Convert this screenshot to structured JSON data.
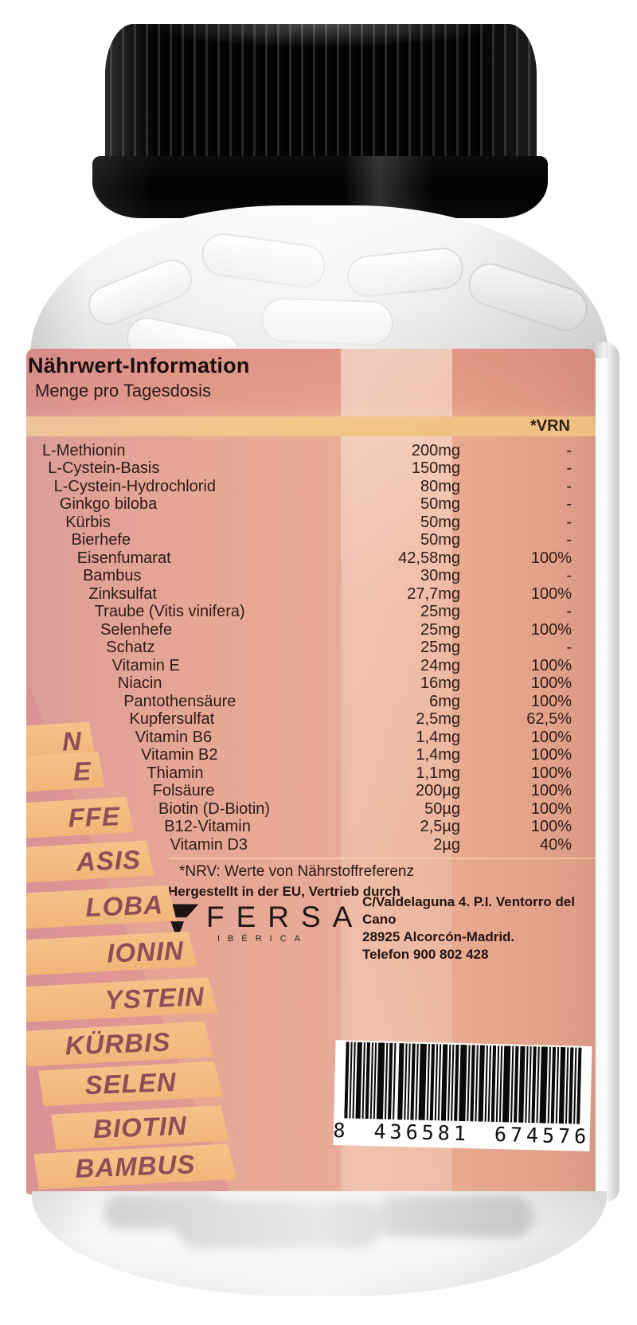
{
  "product": {
    "barcode_digits": "8 436581 674576"
  },
  "label": {
    "title": "Nährwert-Information",
    "subtitle": "Menge pro Tagesdosis",
    "vrn_header": "*VRN",
    "table": {
      "rows": [
        {
          "name": "L-Methionin",
          "amount": "200mg",
          "vrn": "-"
        },
        {
          "name": "L-Cystein-Basis",
          "amount": "150mg",
          "vrn": "-"
        },
        {
          "name": "L-Cystein-Hydrochlorid",
          "amount": "80mg",
          "vrn": "-"
        },
        {
          "name": "Ginkgo biloba",
          "amount": "50mg",
          "vrn": "-"
        },
        {
          "name": "Kürbis",
          "amount": "50mg",
          "vrn": "-"
        },
        {
          "name": "Bierhefe",
          "amount": "50mg",
          "vrn": "-"
        },
        {
          "name": "Eisenfumarat",
          "amount": "42,58mg",
          "vrn": "100%"
        },
        {
          "name": "Bambus",
          "amount": "30mg",
          "vrn": "-"
        },
        {
          "name": "Zinksulfat",
          "amount": "27,7mg",
          "vrn": "100%"
        },
        {
          "name": "Traube (Vitis vinifera)",
          "amount": "25mg",
          "vrn": "-"
        },
        {
          "name": "Selenhefe",
          "amount": "25mg",
          "vrn": "100%"
        },
        {
          "name": "Schatz",
          "amount": "25mg",
          "vrn": "-"
        },
        {
          "name": "Vitamin E",
          "amount": "24mg",
          "vrn": "100%"
        },
        {
          "name": "Niacin",
          "amount": "16mg",
          "vrn": "100%"
        },
        {
          "name": "Pantothensäure",
          "amount": "6mg",
          "vrn": "100%"
        },
        {
          "name": "Kupfersulfat",
          "amount": "2,5mg",
          "vrn": "62,5%"
        },
        {
          "name": "Vitamin B6",
          "amount": "1,4mg",
          "vrn": "100%"
        },
        {
          "name": "Vitamin B2",
          "amount": "1,4mg",
          "vrn": "100%"
        },
        {
          "name": "Thiamin",
          "amount": "1,1mg",
          "vrn": "100%"
        },
        {
          "name": "Folsäure",
          "amount": "200µg",
          "vrn": "100%"
        },
        {
          "name": "Biotin (D-Biotin)",
          "amount": "50µg",
          "vrn": "100%"
        },
        {
          "name": "B12-Vitamin",
          "amount": "2,5µg",
          "vrn": "100%"
        },
        {
          "name": "Vitamin D3",
          "amount": "2µg",
          "vrn": "40%"
        }
      ]
    },
    "nrv_note": "*NRV: Werte von Nährstoffreferenz",
    "distribution_note": "Hergestellt in der EU, Vertrieb durch",
    "brand": {
      "name": "FERSA",
      "sub": "IBÉRICA"
    },
    "address_lines": [
      "C/Valdelaguna 4. P.I. Ventorro del Cano",
      "28925 Alcorcón-Madrid.",
      "Telefon 900 802 428"
    ],
    "ribbons": [
      "N",
      "E",
      "FFE",
      "ASIS",
      "LOBA",
      "IONIN",
      "YSTEIN",
      "KÜRBIS",
      "SELEN",
      "BIOTIN",
      "BAMBUS"
    ]
  },
  "colors": {
    "label_salmon": "#e8ab97",
    "label_pink": "#dd9a92",
    "band_yellow": "#f0c287",
    "ribbon_orange": "#f2ba7e",
    "ribbon_text": "#8d4e57",
    "cap_black": "#0a0a0c"
  }
}
